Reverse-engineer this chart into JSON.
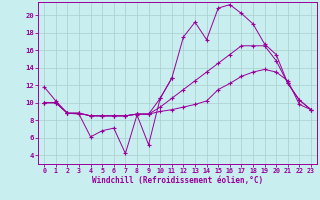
{
  "xlabel": "Windchill (Refroidissement éolien,°C)",
  "bg_color": "#c8eef0",
  "line_color": "#990099",
  "grid_color": "#aacccc",
  "x_ticks": [
    0,
    1,
    2,
    3,
    4,
    5,
    6,
    7,
    8,
    9,
    10,
    11,
    12,
    13,
    14,
    15,
    16,
    17,
    18,
    19,
    20,
    21,
    22,
    23
  ],
  "y_ticks": [
    4,
    6,
    8,
    10,
    12,
    14,
    16,
    18,
    20
  ],
  "ylim": [
    3.0,
    21.5
  ],
  "xlim": [
    -0.5,
    23.5
  ],
  "series1_x": [
    0,
    1,
    2,
    3,
    4,
    5,
    6,
    7,
    8,
    9,
    10,
    11
  ],
  "series1_y": [
    11.8,
    10.2,
    8.8,
    8.7,
    6.1,
    6.8,
    7.1,
    4.2,
    8.6,
    5.2,
    10.5,
    12.8
  ],
  "series2_x": [
    0,
    1,
    2,
    3,
    4,
    5,
    6,
    7,
    8,
    9,
    10,
    11,
    12,
    13,
    14,
    15,
    16,
    17,
    18,
    19,
    20,
    21,
    22,
    23
  ],
  "series2_y": [
    10.0,
    10.0,
    8.8,
    8.8,
    8.5,
    8.5,
    8.5,
    8.5,
    8.7,
    8.7,
    9.0,
    9.2,
    9.5,
    9.8,
    10.2,
    11.5,
    12.2,
    13.0,
    13.5,
    13.8,
    13.5,
    12.5,
    9.8,
    9.2
  ],
  "series3_x": [
    0,
    1,
    2,
    3,
    4,
    5,
    6,
    7,
    8,
    9,
    10,
    11,
    12,
    13,
    14,
    15,
    16,
    17,
    18,
    19,
    20,
    21,
    22,
    23
  ],
  "series3_y": [
    10.0,
    10.0,
    8.8,
    8.8,
    8.5,
    8.5,
    8.5,
    8.5,
    8.7,
    8.7,
    10.5,
    12.8,
    17.5,
    19.2,
    17.2,
    20.8,
    21.2,
    20.2,
    19.0,
    16.7,
    15.5,
    12.2,
    10.3,
    9.2
  ],
  "series4_x": [
    0,
    1,
    2,
    3,
    4,
    5,
    6,
    7,
    8,
    9,
    10,
    11,
    12,
    13,
    14,
    15,
    16,
    17,
    18,
    19,
    20,
    21,
    22,
    23
  ],
  "series4_y": [
    10.0,
    10.0,
    8.8,
    8.8,
    8.5,
    8.5,
    8.5,
    8.5,
    8.7,
    8.7,
    9.5,
    10.5,
    11.5,
    12.5,
    13.5,
    14.5,
    15.5,
    16.5,
    16.5,
    16.5,
    14.8,
    12.2,
    10.3,
    9.2
  ]
}
